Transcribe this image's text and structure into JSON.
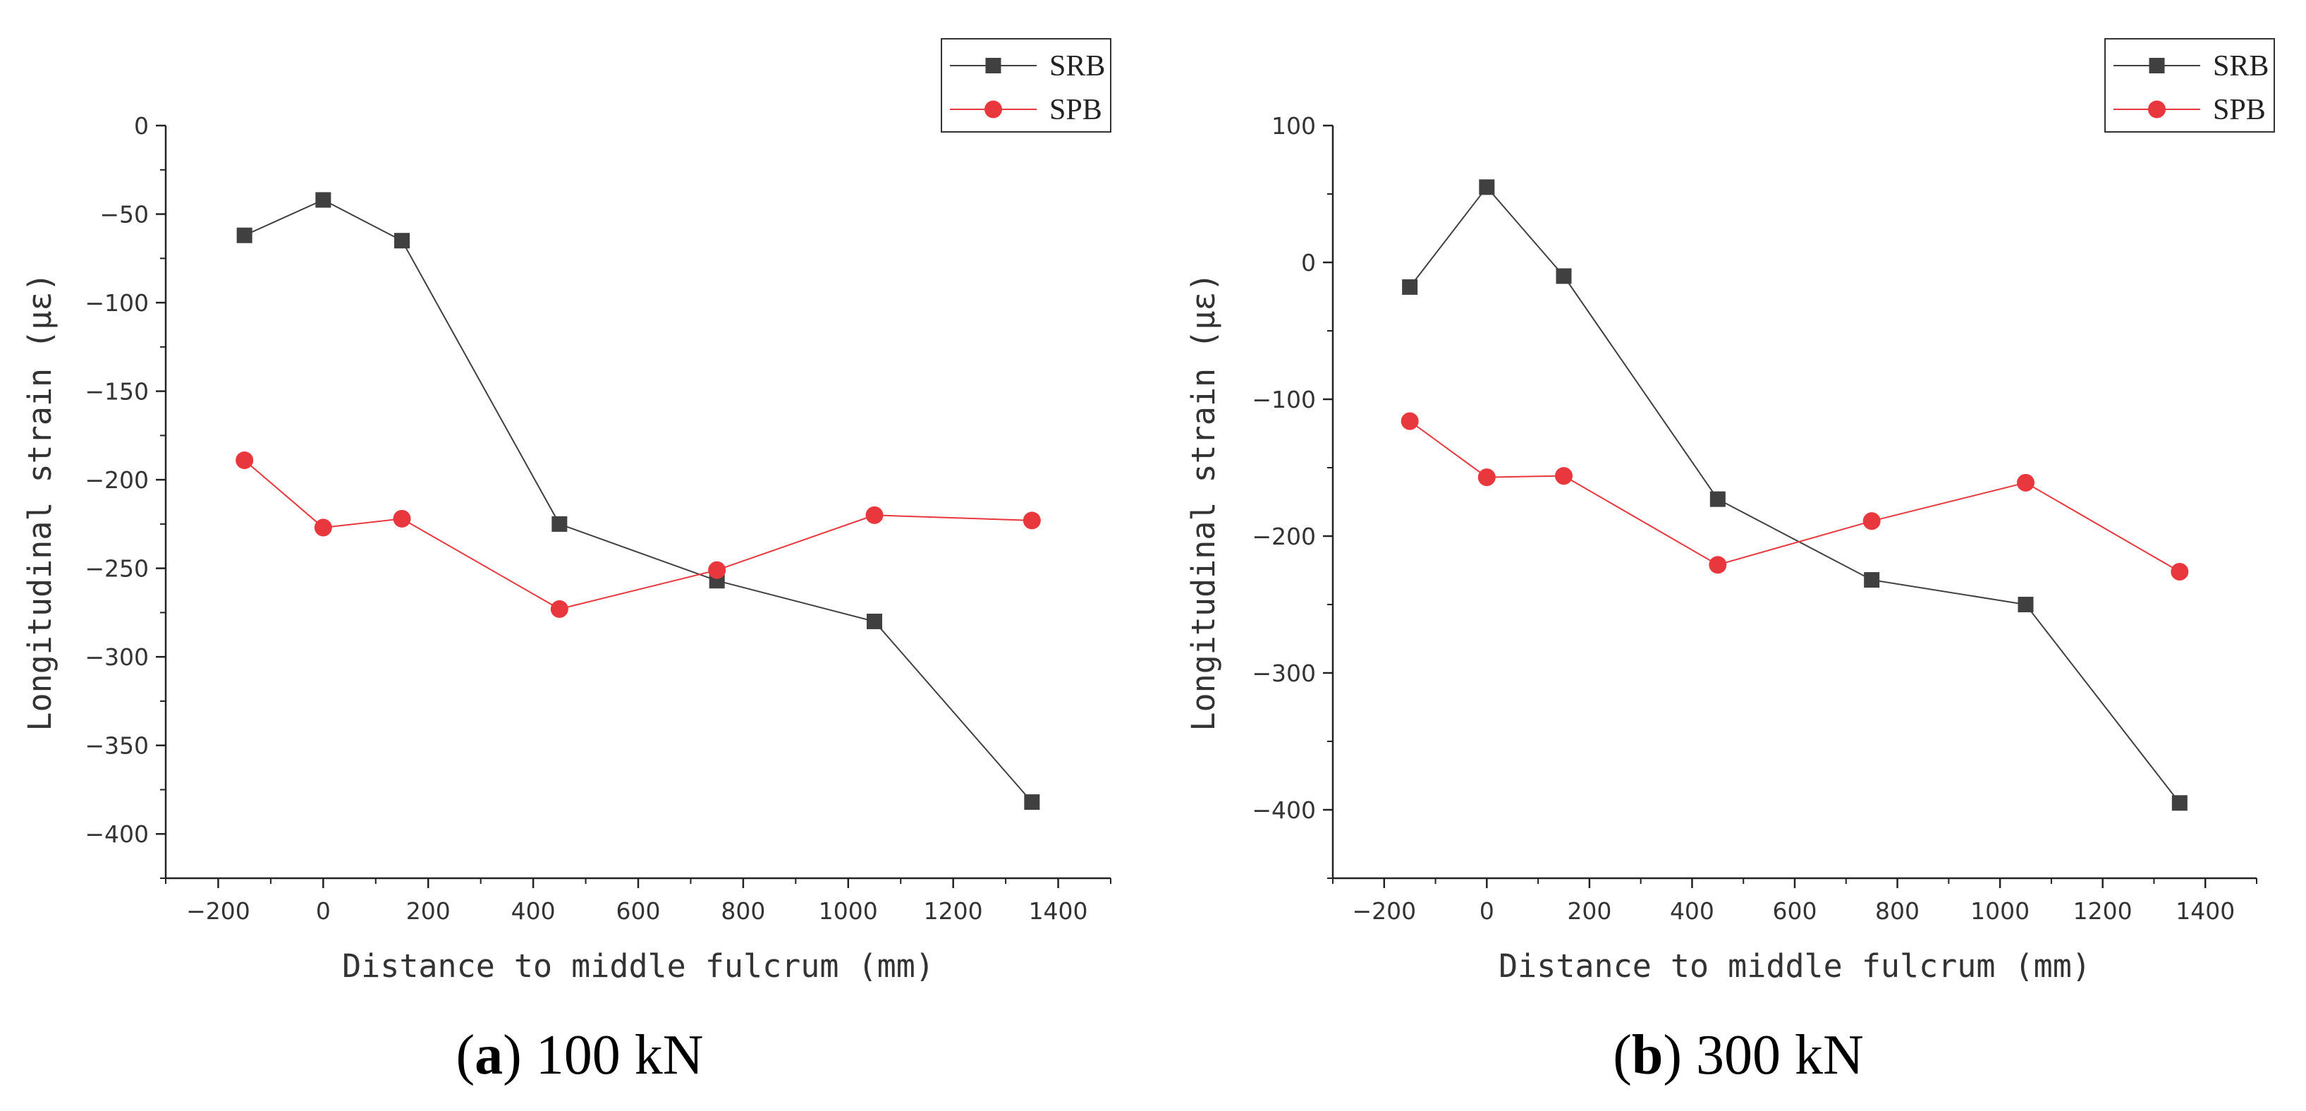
{
  "chart_data": [
    {
      "type": "line",
      "caption_prefix": "(",
      "caption_letter": "a",
      "caption_suffix": ")",
      "caption_text": "100 kN",
      "xlabel": "Distance to middle fulcrum (mm)",
      "ylabel": "Longitudinal strain (με)",
      "xlim": [
        -300,
        1500
      ],
      "ylim": [
        -425,
        0
      ],
      "xticks": [
        -200,
        0,
        200,
        400,
        600,
        800,
        1000,
        1200,
        1400
      ],
      "yticks": [
        0,
        -50,
        -100,
        -150,
        -200,
        -250,
        -300,
        -350,
        -400
      ],
      "legend_position": "top-right",
      "series": [
        {
          "name": "SRB",
          "color": "#404040",
          "marker": "square",
          "x": [
            -150,
            0,
            150,
            450,
            750,
            1050,
            1350
          ],
          "y": [
            -62,
            -42,
            -65,
            -225,
            -257,
            -280,
            -382
          ]
        },
        {
          "name": "SPB",
          "color": "#e8383d",
          "marker": "circle",
          "x": [
            -150,
            0,
            150,
            450,
            750,
            1050,
            1350
          ],
          "y": [
            -189,
            -227,
            -222,
            -273,
            -251,
            -220,
            -223
          ]
        }
      ]
    },
    {
      "type": "line",
      "caption_prefix": "(",
      "caption_letter": "b",
      "caption_suffix": ")",
      "caption_text": "300 kN",
      "xlabel": "Distance to middle fulcrum (mm)",
      "ylabel": "Longitudinal strain (με)",
      "xlim": [
        -300,
        1500
      ],
      "ylim": [
        -450,
        100
      ],
      "xticks": [
        -200,
        0,
        200,
        400,
        600,
        800,
        1000,
        1200,
        1400
      ],
      "yticks": [
        100,
        0,
        -100,
        -200,
        -300,
        -400
      ],
      "legend_position": "top-right",
      "series": [
        {
          "name": "SRB",
          "color": "#404040",
          "marker": "square",
          "x": [
            -150,
            0,
            150,
            450,
            750,
            1050,
            1350
          ],
          "y": [
            -18,
            55,
            -10,
            -173,
            -232,
            -250,
            -395
          ]
        },
        {
          "name": "SPB",
          "color": "#e8383d",
          "marker": "circle",
          "x": [
            -150,
            0,
            150,
            450,
            750,
            1050,
            1350
          ],
          "y": [
            -116,
            -157,
            -156,
            -221,
            -189,
            -161,
            -226
          ]
        }
      ]
    }
  ]
}
